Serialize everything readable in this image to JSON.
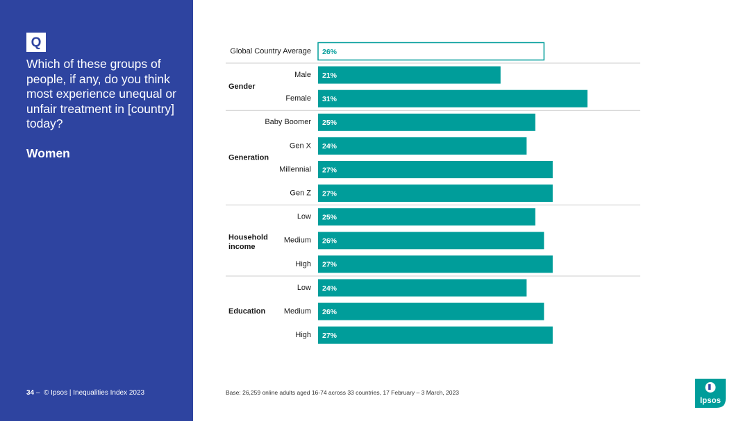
{
  "sidebar": {
    "badge": "Q",
    "question": "Which of these groups of people, if any, do you think most experience unequal or unfair treatment in [country] today?",
    "subtitle": "Women",
    "page_number": "34",
    "page_separator": "–",
    "copyright": "© Ipsos | Inequalities Index 2023"
  },
  "base_note": "Base: 26,259 online adults aged 16-74 across 33 countries, 17 February – 3 March, 2023",
  "logo_text": "Ipsos",
  "colors": {
    "sidebar": "#2e44a0",
    "bar": "#009d9a",
    "average_outline": "#009d9a",
    "logo": "#009d9a"
  },
  "chart_data": {
    "type": "bar",
    "orientation": "horizontal",
    "unit": "%",
    "xlim": [
      0,
      35
    ],
    "average": {
      "label": "Global Country Average",
      "value": 26,
      "value_label": "26%"
    },
    "groups": [
      {
        "name": "Gender",
        "items": [
          {
            "label": "Male",
            "value": 21,
            "value_label": "21%"
          },
          {
            "label": "Female",
            "value": 31,
            "value_label": "31%"
          }
        ]
      },
      {
        "name": "Generation",
        "items": [
          {
            "label": "Baby Boomer",
            "value": 25,
            "value_label": "25%"
          },
          {
            "label": "Gen X",
            "value": 24,
            "value_label": "24%"
          },
          {
            "label": "Millennial",
            "value": 27,
            "value_label": "27%"
          },
          {
            "label": "Gen Z",
            "value": 27,
            "value_label": "27%"
          }
        ]
      },
      {
        "name": "Household income",
        "items": [
          {
            "label": "Low",
            "value": 25,
            "value_label": "25%"
          },
          {
            "label": "Medium",
            "value": 26,
            "value_label": "26%"
          },
          {
            "label": "High",
            "value": 27,
            "value_label": "27%"
          }
        ]
      },
      {
        "name": "Education",
        "items": [
          {
            "label": "Low",
            "value": 24,
            "value_label": "24%"
          },
          {
            "label": "Medium",
            "value": 26,
            "value_label": "26%"
          },
          {
            "label": "High",
            "value": 27,
            "value_label": "27%"
          }
        ]
      }
    ]
  }
}
